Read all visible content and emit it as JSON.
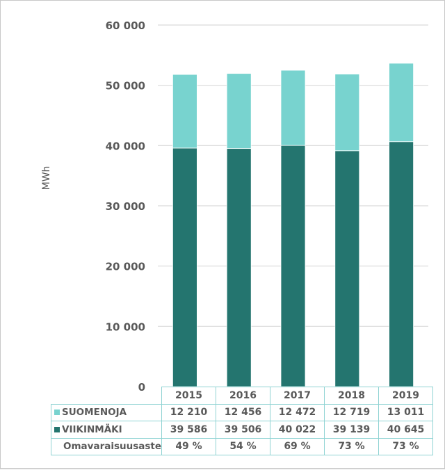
{
  "chart_data": {
    "type": "bar",
    "stacked": true,
    "categories": [
      "2015",
      "2016",
      "2017",
      "2018",
      "2019"
    ],
    "series": [
      {
        "name": "VIIKINMÄKI",
        "values": [
          39586,
          39506,
          40022,
          39139,
          40645
        ],
        "labels": [
          "39 586",
          "39 506",
          "40 022",
          "39 139",
          "40 645"
        ],
        "color": "#24756f"
      },
      {
        "name": "SUOMENOJA",
        "values": [
          12210,
          12456,
          12472,
          12719,
          13011
        ],
        "labels": [
          "12 210",
          "12 456",
          "12 472",
          "12 719",
          "13 011"
        ],
        "color": "#78d3cf"
      }
    ],
    "extra_row": {
      "name": "Omavaraisuusaste",
      "values": [
        "49 %",
        "54 %",
        "69 %",
        "73 %",
        "73 %"
      ]
    },
    "ylabel": "MWh",
    "ylim": [
      0,
      60000
    ],
    "yticks": [
      0,
      10000,
      20000,
      30000,
      40000,
      50000,
      60000
    ],
    "ytick_labels": [
      "0",
      "10 000",
      "20 000",
      "30 000",
      "40 000",
      "50 000",
      "60 000"
    ],
    "grid": true,
    "legend": "data-table"
  }
}
